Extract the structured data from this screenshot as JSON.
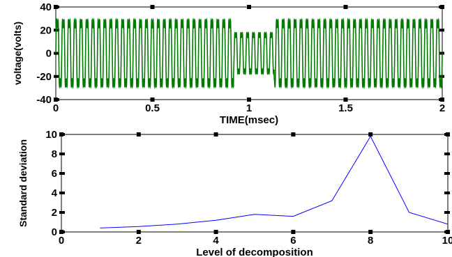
{
  "chart_data": [
    {
      "type": "line",
      "xlabel": "TIME(msec)",
      "ylabel": "voltage(volts)",
      "xlim": [
        0,
        2
      ],
      "ylim": [
        -40,
        40
      ],
      "xticks": [
        0,
        0.5,
        1,
        1.5,
        2
      ],
      "xtick_labels": [
        "0",
        "0.5",
        "1",
        "1.5",
        "2"
      ],
      "yticks": [
        -40,
        -20,
        0,
        20,
        40
      ],
      "ytick_labels": [
        "-40",
        "-20",
        "0",
        "20",
        "40"
      ],
      "grid": false,
      "series": [
        {
          "color": "#007a00",
          "description_values": {
            "normal_amplitude": 31,
            "sag_amplitude": 19,
            "sag_start": 0.92,
            "sag_end": 1.13,
            "cycles": 65,
            "duration": 2
          }
        }
      ]
    },
    {
      "type": "line",
      "xlabel": "Level of decomposition",
      "ylabel": "Standard deviation",
      "xlim": [
        0,
        10
      ],
      "ylim": [
        0,
        10
      ],
      "xticks": [
        0,
        2,
        4,
        6,
        8,
        10
      ],
      "xtick_labels": [
        "0",
        "2",
        "4",
        "6",
        "8",
        "10"
      ],
      "yticks": [
        0,
        2,
        4,
        6,
        8,
        10
      ],
      "ytick_labels": [
        "0",
        "2",
        "4",
        "6",
        "8",
        "10"
      ],
      "grid": false,
      "series": [
        {
          "color": "#0000ff",
          "x": [
            1,
            2,
            3,
            4,
            5,
            6,
            7,
            8,
            9,
            10
          ],
          "y": [
            0.4,
            0.55,
            0.8,
            1.2,
            1.8,
            1.6,
            3.2,
            9.8,
            2.0,
            0.8
          ]
        }
      ]
    }
  ]
}
